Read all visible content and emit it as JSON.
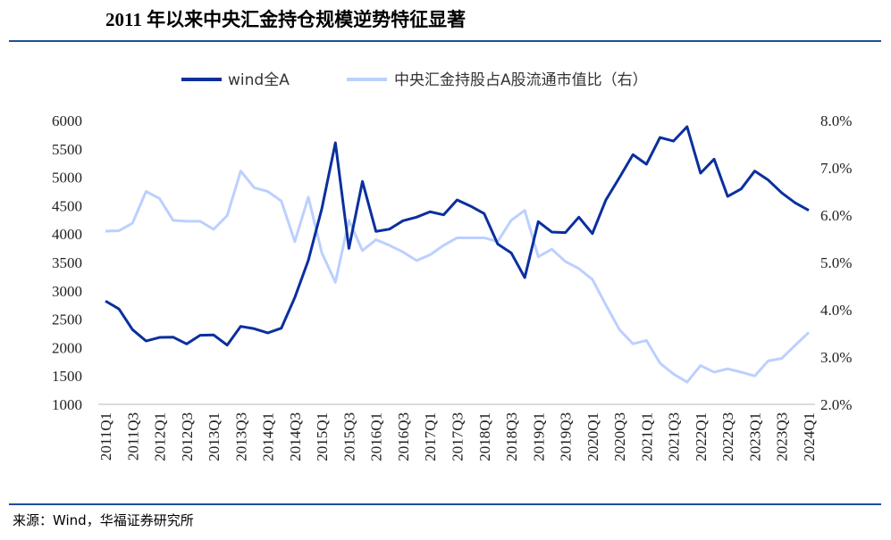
{
  "title": "2011 年以来中央汇金持仓规模逆势特征显著",
  "source": "来源：Wind，华福证券研究所",
  "colors": {
    "rule": "#1f4e9c",
    "series1": "#0a2f9e",
    "series2": "#bcd0ff"
  },
  "chart_data": {
    "type": "line",
    "title": "",
    "categories": [
      "2011Q1",
      "2011Q2",
      "2011Q3",
      "2011Q4",
      "2012Q1",
      "2012Q2",
      "2012Q3",
      "2012Q4",
      "2013Q1",
      "2013Q2",
      "2013Q3",
      "2013Q4",
      "2014Q1",
      "2014Q2",
      "2014Q3",
      "2014Q4",
      "2015Q1",
      "2015Q2",
      "2015Q3",
      "2015Q4",
      "2016Q1",
      "2016Q2",
      "2016Q3",
      "2016Q4",
      "2017Q1",
      "2017Q2",
      "2017Q3",
      "2017Q4",
      "2018Q1",
      "2018Q2",
      "2018Q3",
      "2018Q4",
      "2019Q1",
      "2019Q2",
      "2019Q3",
      "2019Q4",
      "2020Q1",
      "2020Q2",
      "2020Q3",
      "2020Q4",
      "2021Q1",
      "2021Q2",
      "2021Q3",
      "2021Q4",
      "2022Q1",
      "2022Q2",
      "2022Q3",
      "2022Q4",
      "2023Q1",
      "2023Q2",
      "2023Q3",
      "2023Q4",
      "2024Q1"
    ],
    "tick_labels": [
      "2011Q1",
      "2011Q3",
      "2012Q1",
      "2012Q3",
      "2013Q1",
      "2013Q3",
      "2014Q1",
      "2014Q3",
      "2015Q1",
      "2015Q3",
      "2016Q1",
      "2016Q3",
      "2017Q1",
      "2017Q3",
      "2018Q1",
      "2018Q3",
      "2019Q1",
      "2019Q3",
      "2020Q1",
      "2020Q3",
      "2021Q1",
      "2021Q3",
      "2022Q1",
      "2022Q3",
      "2023Q1",
      "2023Q3",
      "2024Q1"
    ],
    "y_left": {
      "ylim": [
        1000,
        6000
      ],
      "ticks": [
        "6000",
        "5500",
        "5000",
        "4500",
        "4000",
        "3500",
        "3000",
        "2500",
        "2000",
        "1500",
        "1000"
      ]
    },
    "y_right": {
      "ylim": [
        2.0,
        8.0
      ],
      "ticks": [
        "8.0%",
        "7.0%",
        "6.0%",
        "5.0%",
        "4.0%",
        "3.0%",
        "2.0%"
      ]
    },
    "legend_position": "top",
    "grid": false,
    "series": [
      {
        "name": "wind全A",
        "axis": "left",
        "values": [
          2820,
          2680,
          2316,
          2116,
          2179,
          2184,
          2064,
          2216,
          2222,
          2043,
          2373,
          2332,
          2258,
          2341,
          2882,
          3537,
          4450,
          5607,
          3747,
          4926,
          4046,
          4087,
          4234,
          4297,
          4392,
          4338,
          4601,
          4491,
          4360,
          3825,
          3668,
          3233,
          4218,
          4035,
          4024,
          4297,
          4008,
          4601,
          4994,
          5398,
          5230,
          5701,
          5638,
          5890,
          5072,
          5319,
          4663,
          4794,
          5109,
          4952,
          4726,
          4548,
          4417
        ]
      },
      {
        "name": "中央汇金持股占A股流通市值比（右）",
        "axis": "right",
        "values": [
          5.66,
          5.67,
          5.83,
          6.5,
          6.35,
          5.89,
          5.87,
          5.87,
          5.7,
          5.99,
          6.93,
          6.58,
          6.5,
          6.3,
          5.44,
          6.38,
          5.2,
          4.58,
          5.89,
          5.25,
          5.48,
          5.36,
          5.22,
          5.04,
          5.16,
          5.36,
          5.52,
          5.52,
          5.52,
          5.44,
          5.89,
          6.1,
          5.12,
          5.28,
          5.02,
          4.87,
          4.64,
          4.1,
          3.58,
          3.28,
          3.35,
          2.87,
          2.64,
          2.47,
          2.82,
          2.68,
          2.75,
          2.68,
          2.6,
          2.92,
          2.97,
          3.25,
          3.52
        ]
      }
    ]
  }
}
